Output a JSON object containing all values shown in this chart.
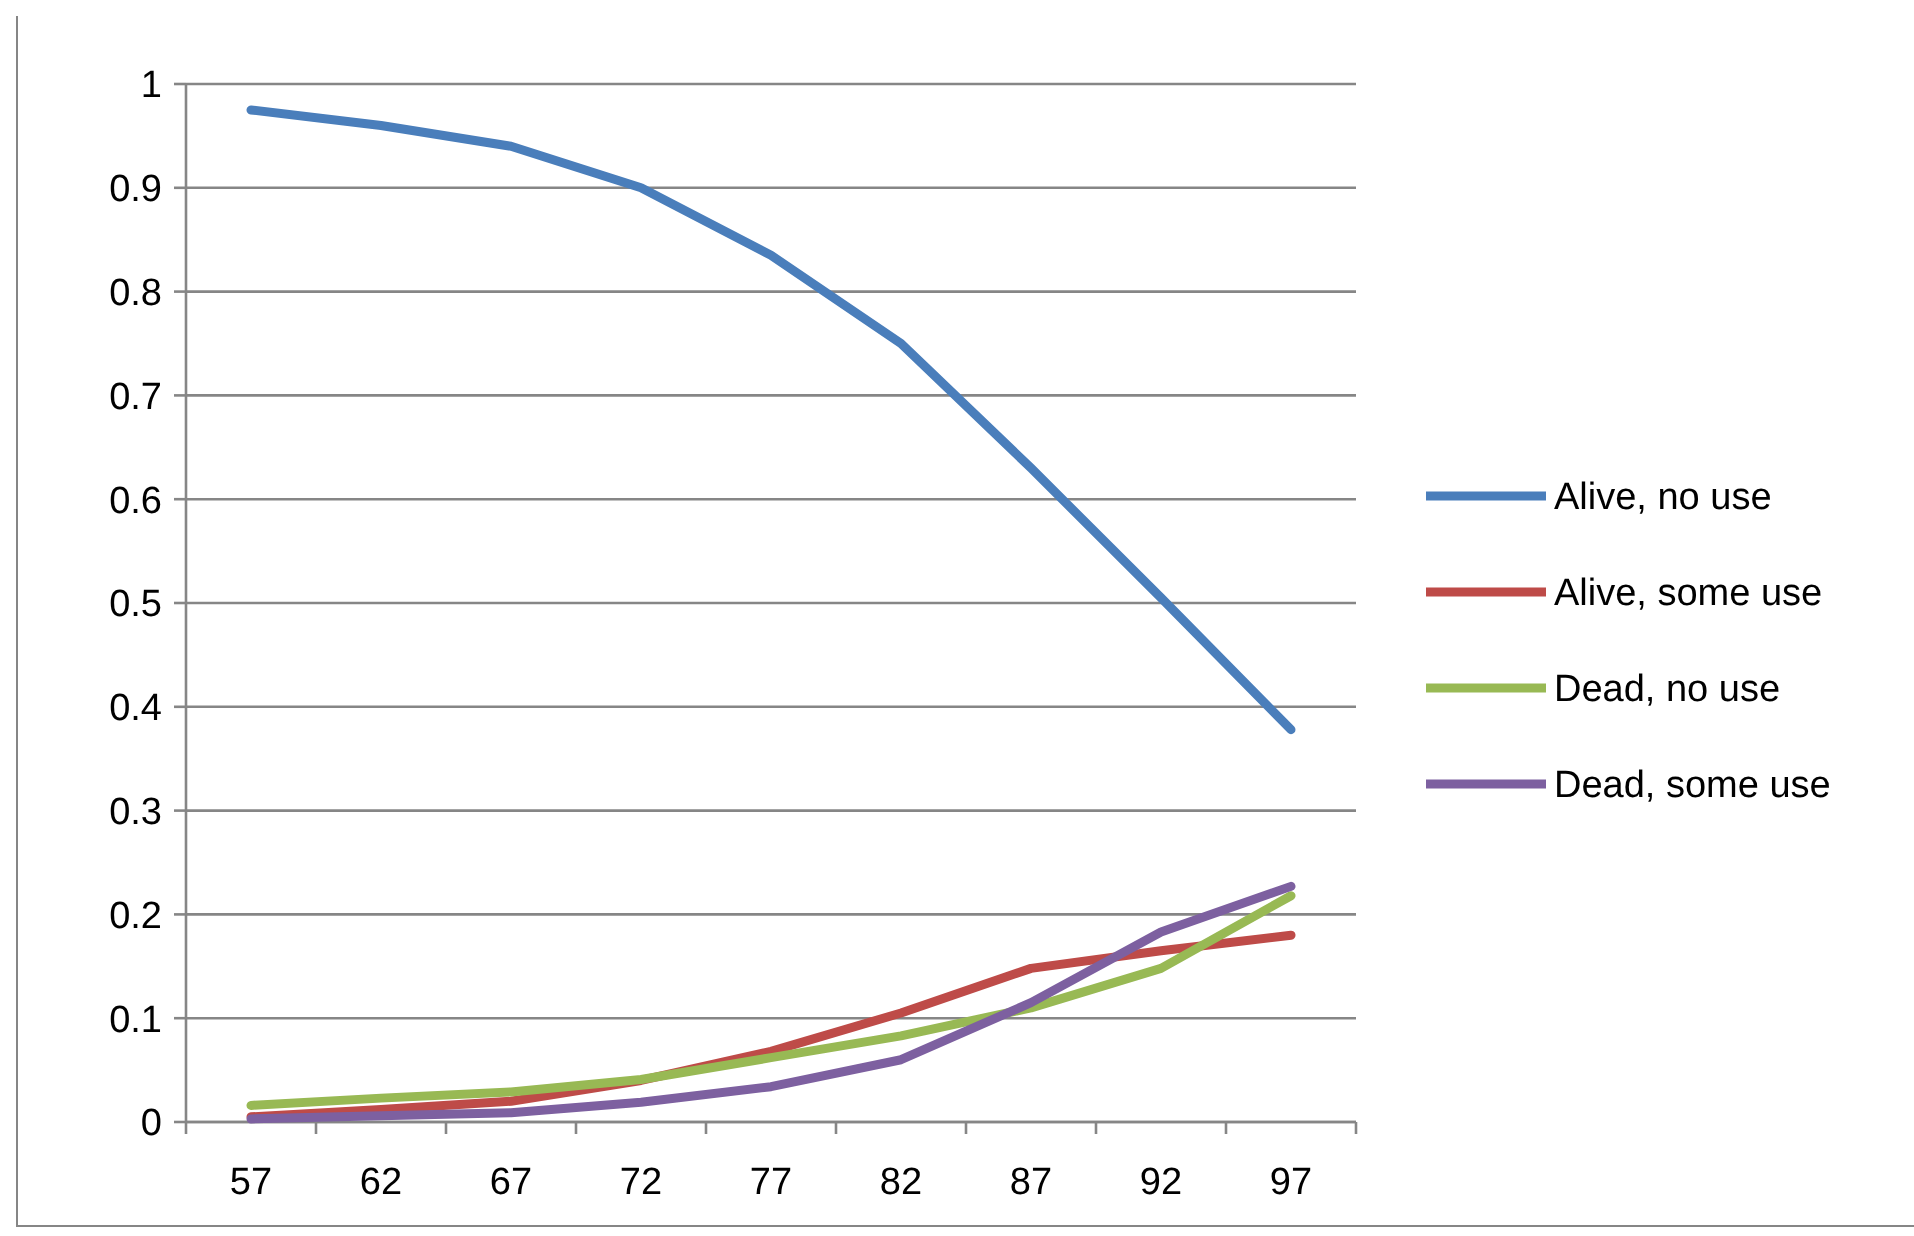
{
  "chart_data": {
    "type": "line",
    "categories": [
      "57",
      "62",
      "67",
      "72",
      "77",
      "82",
      "87",
      "92",
      "97"
    ],
    "series": [
      {
        "name": "Alive, no use",
        "color": "#4a7ebb",
        "values": [
          0.975,
          0.96,
          0.94,
          0.9,
          0.835,
          0.75,
          0.63,
          0.505,
          0.378
        ]
      },
      {
        "name": "Alive, some use",
        "color": "#be4b48",
        "values": [
          0.005,
          0.012,
          0.02,
          0.04,
          0.068,
          0.105,
          0.148,
          0.165,
          0.18
        ]
      },
      {
        "name": "Dead, no use",
        "color": "#98b954",
        "values": [
          0.016,
          0.023,
          0.029,
          0.041,
          0.062,
          0.083,
          0.11,
          0.148,
          0.218
        ]
      },
      {
        "name": "Dead, some use",
        "color": "#7d60a0",
        "values": [
          0.003,
          0.006,
          0.009,
          0.019,
          0.034,
          0.06,
          0.115,
          0.183,
          0.227
        ]
      }
    ],
    "ylim": [
      0,
      1
    ],
    "yticks": [
      0,
      0.1,
      0.2,
      0.3,
      0.4,
      0.5,
      0.6,
      0.7,
      0.8,
      0.9,
      1
    ],
    "grid": "y",
    "legend": "right",
    "marker": "none",
    "line_style": "solid"
  }
}
